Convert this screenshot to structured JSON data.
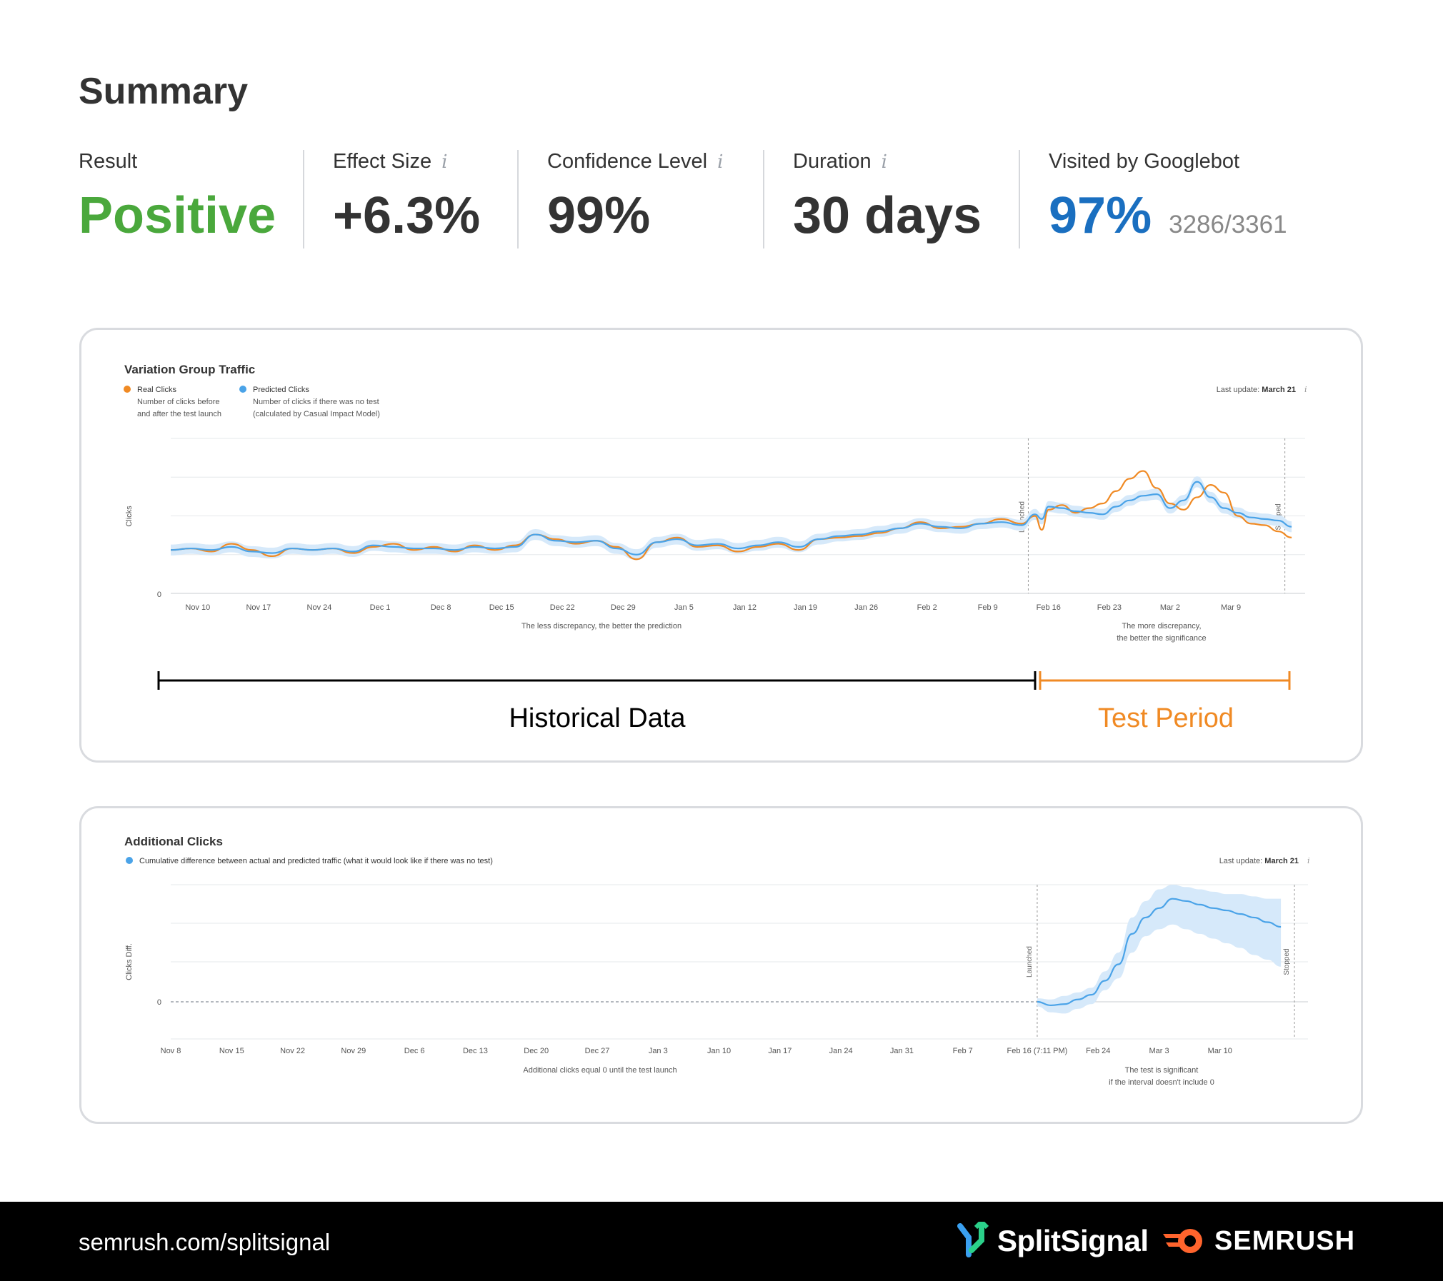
{
  "summary": {
    "title": "Summary",
    "stats": [
      {
        "label": "Result",
        "value": "Positive",
        "color": "#4aa83c",
        "info": false
      },
      {
        "label": "Effect Size",
        "value": "+6.3%",
        "color": "#333333",
        "info": true
      },
      {
        "label": "Confidence Level",
        "value": "99%",
        "color": "#333333",
        "info": true
      },
      {
        "label": "Duration",
        "value": "30 days",
        "color": "#333333",
        "info": true
      },
      {
        "label": "Visited by Googlebot",
        "value": "97%",
        "sub": "3286/3361",
        "color": "#1a6fc0",
        "info": false
      }
    ],
    "info_icon": "i"
  },
  "colors": {
    "real": "#f08a24",
    "predicted": "#4aa3e8",
    "band": "#d6e9fa",
    "bracket_hist": "#000000",
    "bracket_test": "#f08a24"
  },
  "chart_data": [
    {
      "type": "line",
      "title": "Variation Group Traffic",
      "ylabel": "Clicks",
      "last_update_prefix": "Last update:",
      "last_update_date": "March 21",
      "legend": [
        {
          "name": "Real Clicks",
          "desc1": "Number of clicks before",
          "desc2": "and after the test launch",
          "color": "#f08a24"
        },
        {
          "name": "Predicted Clicks",
          "desc1": "Number of clicks if there was no test",
          "desc2": "(calculated by Casual Impact Model)",
          "color": "#4aa3e8"
        }
      ],
      "x_ticks": [
        "Nov 10",
        "Nov 17",
        "Nov 24",
        "Dec 1",
        "Dec 8",
        "Dec 15",
        "Dec 22",
        "Dec 29",
        "Jan 5",
        "Jan 12",
        "Jan 19",
        "Jan 26",
        "Feb 2",
        "Feb 9",
        "Feb 16",
        "Feb 23",
        "Mar 2",
        "Mar 9"
      ],
      "y_ticks": [
        "0"
      ],
      "ylim": [
        0,
        100
      ],
      "annotations": {
        "historical_note": "The less discrepancy, the better the prediction",
        "test_note_1": "The more discrepancy,",
        "test_note_2": "the better the significance",
        "launched": "Launched",
        "stopped": "Stopped"
      },
      "series": [
        {
          "name": "Real Clicks",
          "x": [
            0,
            3,
            6,
            9,
            12,
            15,
            18,
            21,
            24,
            27,
            30,
            33,
            36,
            39,
            42,
            45,
            48,
            51,
            54,
            57,
            60,
            63,
            66,
            69,
            72,
            75,
            78,
            81,
            84,
            87,
            90,
            93,
            96,
            99,
            102,
            105,
            108,
            111,
            114,
            117,
            120,
            123,
            126,
            128,
            129,
            130,
            132,
            134,
            136,
            138,
            140,
            142,
            144,
            146,
            148,
            150,
            152,
            154,
            156,
            158,
            160,
            162,
            164,
            166
          ],
          "y": [
            28,
            29,
            27,
            32,
            28,
            24,
            29,
            28,
            29,
            26,
            30,
            32,
            28,
            30,
            27,
            31,
            28,
            31,
            38,
            35,
            32,
            34,
            30,
            22,
            33,
            36,
            30,
            31,
            27,
            30,
            32,
            28,
            35,
            36,
            37,
            39,
            42,
            46,
            42,
            43,
            45,
            48,
            45,
            50,
            41,
            54,
            57,
            52,
            55,
            58,
            66,
            74,
            79,
            68,
            58,
            54,
            62,
            70,
            65,
            50,
            45,
            44,
            40,
            36
          ]
        },
        {
          "name": "Predicted Clicks",
          "x": [
            0,
            3,
            6,
            9,
            12,
            15,
            18,
            21,
            24,
            27,
            30,
            33,
            36,
            39,
            42,
            45,
            48,
            51,
            54,
            57,
            60,
            63,
            66,
            69,
            72,
            75,
            78,
            81,
            84,
            87,
            90,
            93,
            96,
            99,
            102,
            105,
            108,
            111,
            114,
            117,
            120,
            123,
            126,
            128,
            129,
            130,
            132,
            134,
            136,
            138,
            140,
            142,
            144,
            146,
            148,
            150,
            152,
            154,
            156,
            158,
            160,
            162,
            164,
            166
          ],
          "y": [
            28,
            29,
            28,
            30,
            27,
            26,
            29,
            28,
            29,
            27,
            31,
            30,
            29,
            29,
            28,
            30,
            29,
            30,
            38,
            34,
            33,
            34,
            29,
            25,
            33,
            35,
            31,
            32,
            29,
            31,
            33,
            30,
            35,
            37,
            38,
            40,
            42,
            45,
            43,
            42,
            45,
            46,
            44,
            51,
            48,
            56,
            55,
            53,
            52,
            51,
            56,
            60,
            63,
            64,
            55,
            60,
            72,
            62,
            55,
            52,
            49,
            48,
            47,
            43
          ],
          "band_half": 3.5
        }
      ],
      "launched_x": 127,
      "stopped_x": 165,
      "x_max": 168,
      "tick_positions": [
        4,
        13,
        22,
        31,
        40,
        49,
        58,
        67,
        76,
        85,
        94,
        103,
        112,
        121,
        130,
        139,
        148,
        157
      ]
    },
    {
      "type": "area",
      "title": "Additional Clicks",
      "ylabel": "Clicks Diff.",
      "legend_text": "Cumulative difference between actual and predicted traffic (what it would look like if there was no test)",
      "last_update_prefix": "Last update:",
      "last_update_date": "March 21",
      "x_ticks": [
        "Nov 8",
        "Nov 15",
        "Nov 22",
        "Nov 29",
        "Dec 6",
        "Dec 13",
        "Dec 20",
        "Dec 27",
        "Jan 3",
        "Jan 10",
        "Jan 17",
        "Jan 24",
        "Jan 31",
        "Feb 7",
        "Feb 16 (7:11 PM)",
        "Feb 24",
        "Mar 3",
        "Mar 10"
      ],
      "y_ticks": [
        "0"
      ],
      "ylim": [
        -30,
        100
      ],
      "annotations": {
        "historical_note": "Additional clicks equal 0 until the test launch",
        "test_note_1": "The test is significant",
        "test_note_2": "if the interval doesn't include 0",
        "launched": "Launched",
        "stopped": "Stopped"
      },
      "series": [
        {
          "name": "Additional Clicks",
          "x": [
            128,
            130,
            132,
            134,
            136,
            138,
            140,
            142,
            144,
            146,
            148,
            150,
            152,
            154,
            156,
            158,
            160,
            162,
            164
          ],
          "y": [
            0,
            -3,
            -2,
            2,
            6,
            18,
            32,
            58,
            72,
            80,
            88,
            86,
            83,
            80,
            78,
            75,
            72,
            68,
            64
          ],
          "band_lo": [
            -4,
            -9,
            -10,
            -6,
            -2,
            10,
            20,
            42,
            56,
            62,
            66,
            62,
            58,
            54,
            50,
            46,
            40,
            36,
            30
          ],
          "band_hi": [
            3,
            2,
            5,
            8,
            12,
            26,
            42,
            72,
            86,
            96,
            100,
            98,
            96,
            94,
            92,
            92,
            90,
            88,
            88
          ]
        }
      ],
      "launched_x": 128,
      "stopped_x": 166,
      "x_max": 168,
      "tick_positions": [
        0,
        9,
        18,
        27,
        36,
        45,
        54,
        63,
        72,
        81,
        90,
        99,
        108,
        117,
        128,
        137,
        146,
        155
      ]
    }
  ],
  "brackets": {
    "historical": "Historical Data",
    "test": "Test Period"
  },
  "footer": {
    "url": "semrush.com/splitsignal",
    "brand1": "SplitSignal",
    "brand2": "SEMRUSH"
  }
}
